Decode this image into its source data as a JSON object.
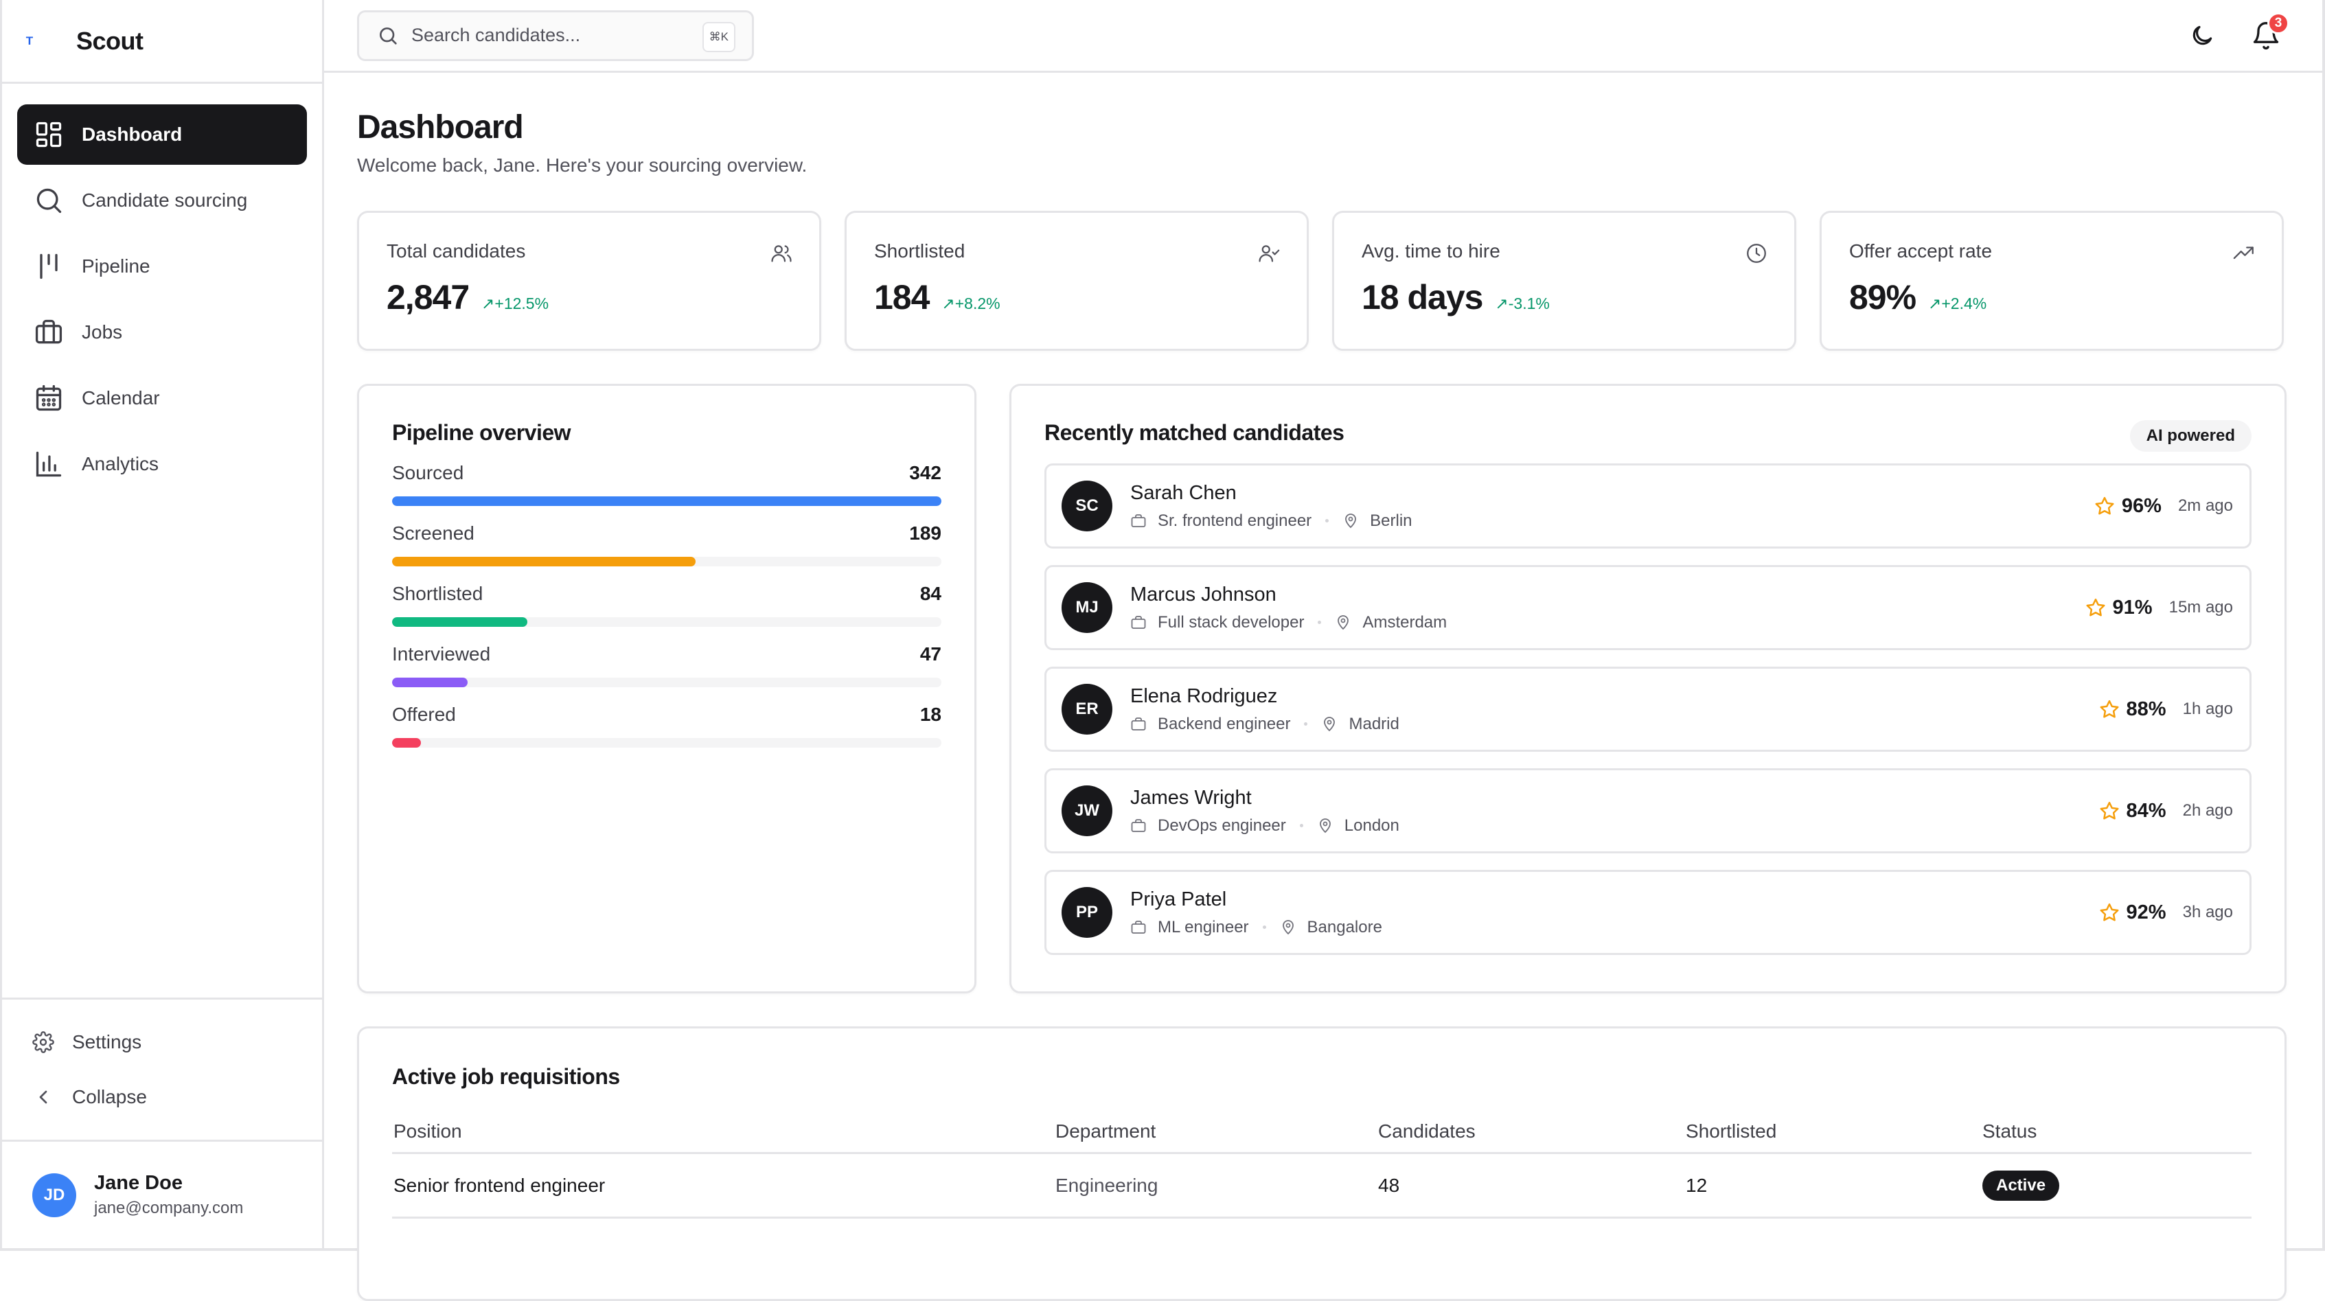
{
  "brand": {
    "mark": "T",
    "name": "Scout"
  },
  "nav": [
    {
      "label": "Dashboard",
      "icon": "dashboard-icon",
      "active": true
    },
    {
      "label": "Candidate sourcing",
      "icon": "search-icon",
      "active": false
    },
    {
      "label": "Pipeline",
      "icon": "pipeline-icon",
      "active": false
    },
    {
      "label": "Jobs",
      "icon": "briefcase-icon",
      "active": false
    },
    {
      "label": "Calendar",
      "icon": "calendar-icon",
      "active": false
    },
    {
      "label": "Analytics",
      "icon": "bar-chart-icon",
      "active": false
    }
  ],
  "utility": {
    "settings": "Settings",
    "collapse": "Collapse"
  },
  "user": {
    "initials": "JD",
    "name": "Jane Doe",
    "email": "jane@company.com"
  },
  "topbar": {
    "search_placeholder": "Search candidates...",
    "shortcut": "⌘K",
    "notifications_count": "3"
  },
  "page": {
    "title": "Dashboard",
    "subtitle": "Welcome back, Jane. Here's your sourcing overview."
  },
  "stats": [
    {
      "label": "Total candidates",
      "value": "2,847",
      "delta": "+12.5%",
      "icon": "users-icon"
    },
    {
      "label": "Shortlisted",
      "value": "184",
      "delta": "+8.2%",
      "icon": "user-check-icon"
    },
    {
      "label": "Avg. time to hire",
      "value": "18 days",
      "delta": "-3.1%",
      "icon": "clock-icon"
    },
    {
      "label": "Offer accept rate",
      "value": "89%",
      "delta": "+2.4%",
      "icon": "trending-up-icon"
    }
  ],
  "pipeline": {
    "title": "Pipeline overview",
    "stages": [
      {
        "label": "Sourced",
        "count": "342",
        "fraction": 1.0,
        "color": "#3b82f6"
      },
      {
        "label": "Screened",
        "count": "189",
        "fraction": 0.553,
        "color": "#f59e0b"
      },
      {
        "label": "Shortlisted",
        "count": "84",
        "fraction": 0.246,
        "color": "#10b981"
      },
      {
        "label": "Interviewed",
        "count": "47",
        "fraction": 0.137,
        "color": "#8b5cf6"
      },
      {
        "label": "Offered",
        "count": "18",
        "fraction": 0.053,
        "color": "#f43f5e"
      }
    ]
  },
  "matches": {
    "title": "Recently matched candidates",
    "badge": "AI powered",
    "candidates": [
      {
        "initials": "SC",
        "name": "Sarah Chen",
        "role": "Sr. frontend engineer",
        "location": "Berlin",
        "score": "96%",
        "time": "2m ago"
      },
      {
        "initials": "MJ",
        "name": "Marcus Johnson",
        "role": "Full stack developer",
        "location": "Amsterdam",
        "score": "91%",
        "time": "15m ago"
      },
      {
        "initials": "ER",
        "name": "Elena Rodriguez",
        "role": "Backend engineer",
        "location": "Madrid",
        "score": "88%",
        "time": "1h ago"
      },
      {
        "initials": "JW",
        "name": "James Wright",
        "role": "DevOps engineer",
        "location": "London",
        "score": "84%",
        "time": "2h ago"
      },
      {
        "initials": "PP",
        "name": "Priya Patel",
        "role": "ML engineer",
        "location": "Bangalore",
        "score": "92%",
        "time": "3h ago"
      }
    ]
  },
  "jobs": {
    "title": "Active job requisitions",
    "columns": [
      "Position",
      "Department",
      "Candidates",
      "Shortlisted",
      "Status"
    ],
    "rows": [
      {
        "position": "Senior frontend engineer",
        "department": "Engineering",
        "candidates": "48",
        "shortlisted": "12",
        "status": "Active"
      }
    ]
  },
  "colors": {
    "accent": "#18181b",
    "positive": "#059669",
    "star": "#f59e0b",
    "notification": "#ef4444"
  }
}
